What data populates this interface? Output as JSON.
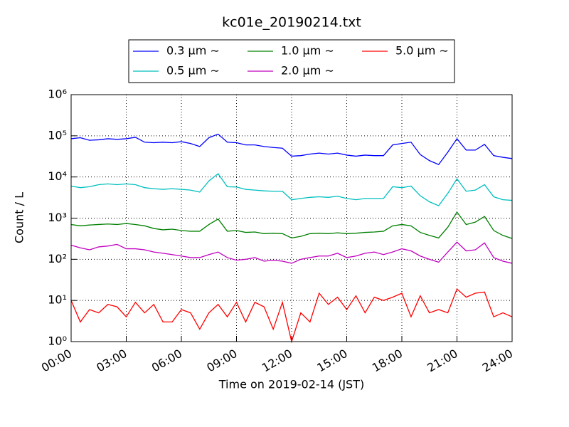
{
  "chart_data": {
    "type": "line",
    "title": "kc01e_20190214.txt",
    "x_label": "Time on 2019-02-14 (JST)",
    "y_label": "Count / L",
    "y_scale": "log",
    "grid": true,
    "legend_location": "upper center",
    "x": [
      0,
      0.5,
      1,
      1.5,
      2,
      2.5,
      3,
      3.5,
      4,
      4.5,
      5,
      5.5,
      6,
      6.5,
      7,
      7.5,
      8,
      8.5,
      9,
      9.5,
      10,
      10.5,
      11,
      11.5,
      12,
      12.5,
      13,
      13.5,
      14,
      14.5,
      15,
      15.5,
      16,
      16.5,
      17,
      17.5,
      18,
      18.5,
      19,
      19.5,
      20,
      20.5,
      21,
      21.5,
      22,
      22.5,
      23,
      23.5,
      24
    ],
    "xlim": [
      0,
      24
    ],
    "xticks": [
      {
        "value": 0,
        "label": "00:00"
      },
      {
        "value": 3,
        "label": "03:00"
      },
      {
        "value": 6,
        "label": "06:00"
      },
      {
        "value": 9,
        "label": "09:00"
      },
      {
        "value": 12,
        "label": "12:00"
      },
      {
        "value": 15,
        "label": "15:00"
      },
      {
        "value": 18,
        "label": "18:00"
      },
      {
        "value": 21,
        "label": "21:00"
      },
      {
        "value": 24,
        "label": "24:00"
      }
    ],
    "ylim": [
      1,
      1000000
    ],
    "yticks": [
      {
        "value": 1,
        "label": "10⁰"
      },
      {
        "value": 10,
        "label": "10¹"
      },
      {
        "value": 100,
        "label": "10²"
      },
      {
        "value": 1000,
        "label": "10³"
      },
      {
        "value": 10000,
        "label": "10⁴"
      },
      {
        "value": 100000,
        "label": "10⁵"
      },
      {
        "value": 1000000,
        "label": "10⁶"
      }
    ],
    "series": [
      {
        "name": "0.3 μm ∼",
        "color": "#0000ff",
        "values": [
          85000,
          90000,
          78000,
          80000,
          85000,
          82000,
          85000,
          92000,
          70000,
          68000,
          70000,
          68000,
          72000,
          65000,
          55000,
          90000,
          110000,
          70000,
          68000,
          60000,
          60000,
          55000,
          52000,
          50000,
          32000,
          33000,
          36000,
          38000,
          36000,
          38000,
          34000,
          32000,
          34000,
          33000,
          33000,
          60000,
          65000,
          70000,
          35000,
          25000,
          20000,
          40000,
          85000,
          45000,
          45000,
          62000,
          33000,
          30000,
          28000
        ]
      },
      {
        "name": "0.5 μm ∼",
        "color": "#00bfbf",
        "values": [
          6000,
          5500,
          5800,
          6500,
          6800,
          6500,
          6800,
          6500,
          5500,
          5200,
          5000,
          5200,
          5000,
          4800,
          4300,
          8000,
          12000,
          5800,
          5700,
          5000,
          4800,
          4600,
          4500,
          4500,
          2800,
          3000,
          3200,
          3300,
          3200,
          3400,
          3000,
          2800,
          3000,
          3000,
          3000,
          5800,
          5500,
          6000,
          3500,
          2500,
          2000,
          4000,
          9000,
          4500,
          4800,
          6500,
          3300,
          2800,
          2700
        ]
      },
      {
        "name": "1.0 μm ∼",
        "color": "#008000",
        "values": [
          700,
          650,
          680,
          700,
          720,
          700,
          740,
          700,
          650,
          560,
          520,
          540,
          500,
          480,
          480,
          700,
          950,
          480,
          500,
          450,
          460,
          420,
          430,
          420,
          330,
          360,
          420,
          430,
          420,
          440,
          420,
          430,
          450,
          460,
          480,
          650,
          700,
          650,
          450,
          380,
          330,
          600,
          1400,
          700,
          800,
          1100,
          500,
          380,
          320
        ]
      },
      {
        "name": "2.0 μm ∼",
        "color": "#bf00bf",
        "values": [
          220,
          190,
          170,
          200,
          210,
          230,
          180,
          180,
          170,
          150,
          140,
          130,
          120,
          110,
          110,
          130,
          150,
          110,
          95,
          100,
          110,
          90,
          95,
          90,
          80,
          100,
          110,
          120,
          120,
          140,
          110,
          120,
          140,
          150,
          130,
          150,
          180,
          160,
          120,
          100,
          85,
          150,
          260,
          160,
          170,
          250,
          110,
          90,
          80
        ]
      },
      {
        "name": "5.0 μm ∼",
        "color": "#ff0000",
        "values": [
          10,
          3,
          6,
          5,
          8,
          7,
          4,
          9,
          5,
          8,
          3,
          3,
          6,
          5,
          2,
          5,
          8,
          4,
          9,
          3,
          9,
          7,
          2,
          9,
          1,
          5,
          3,
          15,
          8,
          12,
          6,
          13,
          5,
          12,
          10,
          12,
          15,
          4,
          13,
          5,
          6,
          5,
          19,
          12,
          15,
          16,
          4,
          5,
          4
        ]
      }
    ]
  }
}
